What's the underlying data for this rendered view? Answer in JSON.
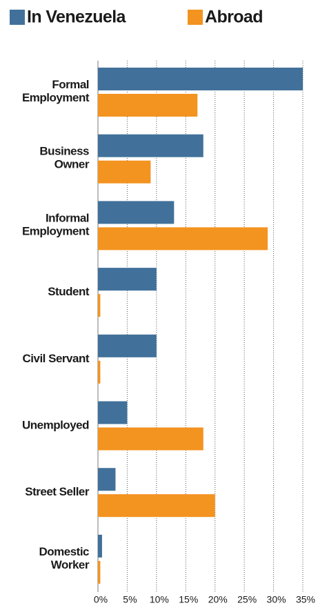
{
  "chart_data": {
    "type": "barh",
    "categories": [
      "Formal\nEmployment",
      "Business\nOwner",
      "Informal\nEmployment",
      "Student",
      "Civil Servant",
      "Unemployed",
      "Street Seller",
      "Domestic\nWorker"
    ],
    "series": [
      {
        "name": "In Venezuela",
        "color": "#41719a",
        "values": [
          35,
          18,
          13,
          10,
          10,
          5,
          3,
          0.7
        ]
      },
      {
        "name": "Abroad",
        "color": "#f39320",
        "values": [
          17,
          9,
          29,
          0.4,
          0.4,
          18,
          20,
          0.4
        ]
      }
    ],
    "xlim": [
      0,
      35
    ],
    "xticks": [
      {
        "value": 0,
        "label": "0%"
      },
      {
        "value": 5,
        "label": "5%"
      },
      {
        "value": 10,
        "label": "10%"
      },
      {
        "value": 15,
        "label": "15%"
      },
      {
        "value": 20,
        "label": "20%"
      },
      {
        "value": 25,
        "label": "25%"
      },
      {
        "value": 30,
        "label": "30%"
      },
      {
        "value": 35,
        "label": "35%"
      }
    ],
    "grid": true
  }
}
